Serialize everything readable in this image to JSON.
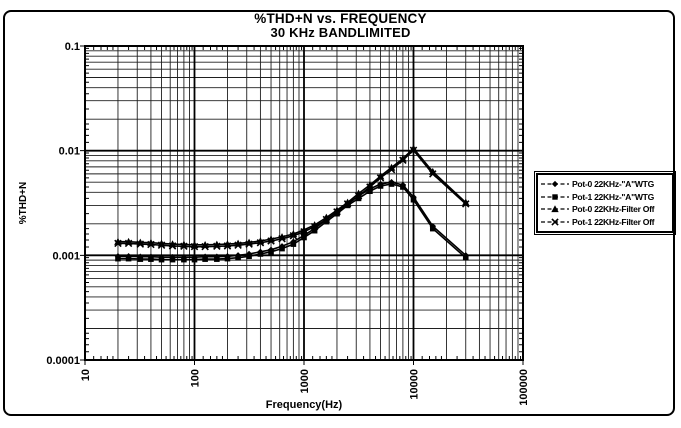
{
  "title": {
    "line1": "%THD+N vs. FREQUENCY",
    "line2": "30 KHz BANDLIMITED"
  },
  "colors": {
    "ink": "#000000",
    "paper": "#ffffff"
  },
  "chart_data": {
    "type": "line",
    "title": "%THD+N vs. FREQUENCY",
    "subtitle": "30 KHz BANDLIMITED",
    "xlabel": "Frequency(Hz)",
    "ylabel": "%THD+N",
    "x_scale": "log",
    "y_scale": "log",
    "xlim": [
      10,
      100000
    ],
    "ylim": [
      0.0001,
      0.1
    ],
    "x_ticks": [
      "10",
      "100",
      "1000",
      "10000",
      "100000"
    ],
    "y_ticks": [
      "0.1",
      "0.01",
      "0.001",
      "0.0001"
    ],
    "grid": "log major and minor, both axes",
    "legend_position": "right-outside",
    "x": [
      20,
      25,
      32,
      40,
      50,
      63,
      80,
      100,
      125,
      160,
      200,
      250,
      315,
      400,
      500,
      630,
      800,
      1000,
      1250,
      1600,
      2000,
      2500,
      3150,
      4000,
      5000,
      6300,
      8000,
      10000,
      15000,
      30000
    ],
    "series": [
      {
        "name": "Pot-0 22KHz-\"A\"WTG",
        "marker": "diamond",
        "values": [
          0.00098,
          0.00098,
          0.00097,
          0.00097,
          0.00096,
          0.00096,
          0.00096,
          0.00096,
          0.00097,
          0.00097,
          0.00098,
          0.001,
          0.00103,
          0.00108,
          0.00113,
          0.00122,
          0.00135,
          0.00155,
          0.0018,
          0.0022,
          0.0026,
          0.0031,
          0.0037,
          0.0043,
          0.0048,
          0.005,
          0.0047,
          0.0036,
          0.0019,
          0.001
        ]
      },
      {
        "name": "Pot-1 22KHz-\"A\"WTG",
        "marker": "square",
        "values": [
          0.00093,
          0.00093,
          0.00092,
          0.00092,
          0.00091,
          0.00091,
          0.00091,
          0.00091,
          0.00092,
          0.00092,
          0.00093,
          0.00095,
          0.00098,
          0.00103,
          0.00108,
          0.00116,
          0.00128,
          0.00148,
          0.00172,
          0.0021,
          0.0025,
          0.003,
          0.0035,
          0.0041,
          0.0046,
          0.0048,
          0.0045,
          0.0034,
          0.0018,
          0.00095
        ]
      },
      {
        "name": "Pot-0 22KHz-Filter Off",
        "marker": "triangle",
        "values": [
          0.00135,
          0.00135,
          0.00133,
          0.00132,
          0.0013,
          0.00128,
          0.00127,
          0.00126,
          0.00126,
          0.00127,
          0.00128,
          0.0013,
          0.00133,
          0.00137,
          0.00143,
          0.0015,
          0.0016,
          0.00175,
          0.00195,
          0.0023,
          0.0027,
          0.0032,
          0.0039,
          0.0047,
          0.0057,
          0.0069,
          0.0084,
          0.0105,
          0.0063,
          0.0032
        ]
      },
      {
        "name": "Pot-1 22KHz-Filter Off",
        "marker": "x",
        "values": [
          0.0013,
          0.0013,
          0.00128,
          0.00127,
          0.00125,
          0.00123,
          0.00122,
          0.00121,
          0.00121,
          0.00122,
          0.00123,
          0.00125,
          0.00128,
          0.00132,
          0.00137,
          0.00144,
          0.00154,
          0.00168,
          0.00188,
          0.0022,
          0.0026,
          0.0031,
          0.0037,
          0.0045,
          0.0055,
          0.0066,
          0.0081,
          0.0101,
          0.006,
          0.0031
        ]
      }
    ]
  }
}
